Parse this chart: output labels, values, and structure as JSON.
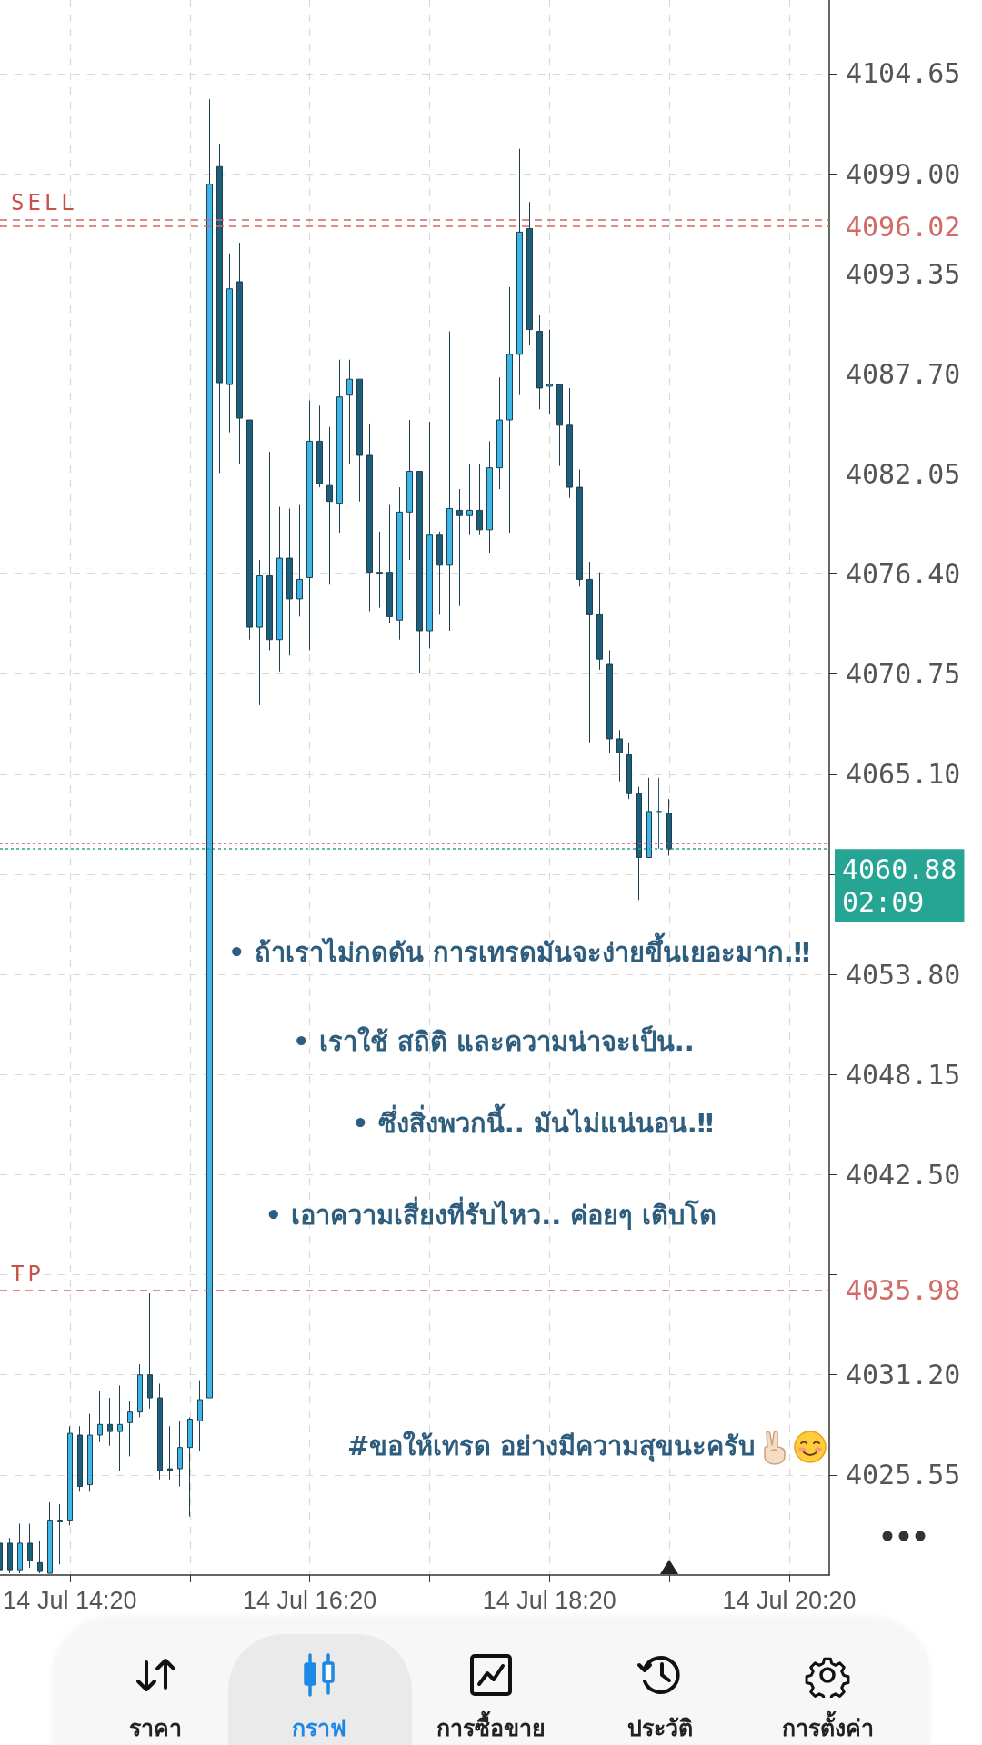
{
  "chart_data": {
    "type": "candlestick",
    "x": [
      "--07-14T13:45",
      "--07-14T13:50",
      "--07-14T13:55",
      "--07-14T14:00",
      "--07-14T14:05",
      "--07-14T14:10",
      "--07-14T14:15",
      "--07-14T14:20",
      "--07-14T14:25",
      "--07-14T14:30",
      "--07-14T14:35",
      "--07-14T14:40",
      "--07-14T14:45",
      "--07-14T14:50",
      "--07-14T14:55",
      "--07-14T15:00",
      "--07-14T15:05",
      "--07-14T15:10",
      "--07-14T15:15",
      "--07-14T15:20",
      "--07-14T15:25",
      "--07-14T15:30",
      "--07-14T15:35",
      "--07-14T15:40",
      "--07-14T15:45",
      "--07-14T15:50",
      "--07-14T15:55",
      "--07-14T16:00",
      "--07-14T16:05",
      "--07-14T16:10",
      "--07-14T16:15",
      "--07-14T16:20",
      "--07-14T16:25",
      "--07-14T16:30",
      "--07-14T16:35",
      "--07-14T16:40",
      "--07-14T16:45",
      "--07-14T16:50",
      "--07-14T16:55",
      "--07-14T17:00",
      "--07-14T17:05",
      "--07-14T17:10",
      "--07-14T17:15",
      "--07-14T17:20",
      "--07-14T17:25",
      "--07-14T17:30",
      "--07-14T17:35",
      "--07-14T17:40",
      "--07-14T17:45",
      "--07-14T17:50",
      "--07-14T17:55",
      "--07-14T18:00",
      "--07-14T18:05",
      "--07-14T18:10",
      "--07-14T18:15",
      "--07-14T18:20",
      "--07-14T18:25",
      "--07-14T18:30",
      "--07-14T18:35",
      "--07-14T18:40",
      "--07-14T18:45",
      "--07-14T18:50",
      "--07-14T18:55",
      "--07-14T19:00",
      "--07-14T19:05",
      "--07-14T19:10",
      "--07-14T19:15",
      "--07-14T19:20"
    ],
    "ohlc": [
      [
        4021.7,
        4021.8,
        4020.0,
        4020.2
      ],
      [
        4021.7,
        4022.0,
        4020.0,
        4020.2
      ],
      [
        4020.2,
        4022.8,
        4020.0,
        4021.7
      ],
      [
        4021.7,
        4022.8,
        4020.3,
        4020.7
      ],
      [
        4020.6,
        4021.8,
        4020.0,
        4020.1
      ],
      [
        4020.0,
        4024.0,
        4020.0,
        4023.0
      ],
      [
        4022.9,
        4023.9,
        4020.5,
        4023.0
      ],
      [
        4023.0,
        4028.3,
        4022.7,
        4027.9
      ],
      [
        4027.8,
        4028.3,
        4024.6,
        4024.9
      ],
      [
        4025.0,
        4029.0,
        4024.6,
        4027.8
      ],
      [
        4027.8,
        4030.3,
        4027.4,
        4028.4
      ],
      [
        4028.4,
        4029.9,
        4027.2,
        4028.0
      ],
      [
        4028.0,
        4030.6,
        4025.8,
        4028.4
      ],
      [
        4028.5,
        4029.7,
        4026.6,
        4029.1
      ],
      [
        4029.1,
        4031.8,
        4028.8,
        4031.2
      ],
      [
        4031.2,
        4035.8,
        4029.3,
        4029.9
      ],
      [
        4029.9,
        4030.7,
        4025.3,
        4025.8
      ],
      [
        4025.9,
        4028.3,
        4025.3,
        4025.8
      ],
      [
        4025.9,
        4028.6,
        4024.9,
        4027.1
      ],
      [
        4027.1,
        4028.8,
        4023.2,
        4028.7
      ],
      [
        4028.6,
        4030.9,
        4026.9,
        4029.8
      ],
      [
        4029.9,
        4103.2,
        4029.9,
        4098.4
      ],
      [
        4099.4,
        4100.7,
        4082.1,
        4087.2
      ],
      [
        4087.1,
        4094.5,
        4084.4,
        4092.5
      ],
      [
        4092.9,
        4095.1,
        4082.6,
        4085.2
      ],
      [
        4085.1,
        4085.1,
        4072.7,
        4073.4
      ],
      [
        4073.4,
        4077.2,
        4069.0,
        4076.3
      ],
      [
        4076.3,
        4083.3,
        4072.1,
        4072.7
      ],
      [
        4072.7,
        4080.2,
        4070.9,
        4077.3
      ],
      [
        4077.3,
        4080.1,
        4071.8,
        4075.0
      ],
      [
        4075.0,
        4080.3,
        4074.0,
        4076.1
      ],
      [
        4076.2,
        4086.2,
        4072.1,
        4083.9
      ],
      [
        4083.9,
        4085.9,
        4081.3,
        4081.5
      ],
      [
        4081.4,
        4084.7,
        4075.8,
        4080.5
      ],
      [
        4080.4,
        4088.5,
        4078.7,
        4086.4
      ],
      [
        4086.5,
        4088.5,
        4082.6,
        4087.4
      ],
      [
        4087.4,
        4087.4,
        4080.5,
        4083.1
      ],
      [
        4083.1,
        4084.9,
        4074.3,
        4076.5
      ],
      [
        4076.5,
        4078.8,
        4074.5,
        4076.4
      ],
      [
        4076.5,
        4080.3,
        4073.6,
        4074.0
      ],
      [
        4073.8,
        4081.3,
        4072.7,
        4079.9
      ],
      [
        4079.9,
        4085.1,
        4077.2,
        4082.2
      ],
      [
        4082.2,
        4082.2,
        4070.8,
        4073.2
      ],
      [
        4073.2,
        4085.0,
        4072.2,
        4078.6
      ],
      [
        4078.6,
        4078.8,
        4074.1,
        4076.9
      ],
      [
        4076.9,
        4090.1,
        4073.2,
        4080.1
      ],
      [
        4080.0,
        4081.2,
        4074.6,
        4079.7
      ],
      [
        4079.7,
        4082.6,
        4078.6,
        4080.0
      ],
      [
        4080.0,
        4082.6,
        4078.6,
        4078.9
      ],
      [
        4078.9,
        4083.9,
        4077.6,
        4082.4
      ],
      [
        4082.4,
        4087.5,
        4081.2,
        4085.1
      ],
      [
        4085.1,
        4092.6,
        4078.7,
        4088.8
      ],
      [
        4088.8,
        4100.4,
        4086.5,
        4095.7
      ],
      [
        4095.9,
        4097.4,
        4089.3,
        4090.2
      ],
      [
        4090.1,
        4091.0,
        4085.7,
        4086.9
      ],
      [
        4087.0,
        4090.2,
        4085.4,
        4087.1
      ],
      [
        4087.1,
        4087.1,
        4082.5,
        4084.8
      ],
      [
        4084.8,
        4086.9,
        4080.7,
        4081.3
      ],
      [
        4081.3,
        4082.3,
        4075.7,
        4076.1
      ],
      [
        4076.1,
        4077.1,
        4066.9,
        4074.1
      ],
      [
        4074.1,
        4076.5,
        4071.0,
        4071.6
      ],
      [
        4071.3,
        4072.1,
        4066.3,
        4067.1
      ],
      [
        4067.1,
        4067.6,
        4064.7,
        4066.3
      ],
      [
        4066.2,
        4066.9,
        4063.7,
        4064.0
      ],
      [
        4064.0,
        4064.4,
        4058.0,
        4060.4
      ],
      [
        4060.4,
        4064.9,
        4060.4,
        4063.0
      ],
      [
        4063.0,
        4064.9,
        4060.9,
        4063.0
      ],
      [
        4062.9,
        4063.7,
        4060.5,
        4060.88
      ]
    ],
    "colors": [
      "#1d5e7a",
      "#1d5e7a",
      "#3db5e6",
      "#1d5e7a",
      "#1d5e7a",
      "#3db5e6",
      "#1d5e7a",
      "#3db5e6",
      "#1d5e7a",
      "#3db5e6",
      "#3db5e6",
      "#1d5e7a",
      "#3db5e6",
      "#3db5e6",
      "#3db5e6",
      "#1d5e7a",
      "#1d5e7a",
      "#1d5e7a",
      "#3db5e6",
      "#3db5e6",
      "#3db5e6",
      "#3db5e6",
      "#1d5e7a",
      "#3db5e6",
      "#1d5e7a",
      "#1d5e7a",
      "#3db5e6",
      "#1d5e7a",
      "#3db5e6",
      "#1d5e7a",
      "#3db5e6",
      "#3db5e6",
      "#1d5e7a",
      "#1d5e7a",
      "#3db5e6",
      "#3db5e6",
      "#1d5e7a",
      "#1d5e7a",
      "#1d5e7a",
      "#1d5e7a",
      "#3db5e6",
      "#3db5e6",
      "#1d5e7a",
      "#3db5e6",
      "#1d5e7a",
      "#3db5e6",
      "#1d5e7a",
      "#3db5e6",
      "#1d5e7a",
      "#3db5e6",
      "#3db5e6",
      "#3db5e6",
      "#3db5e6",
      "#1d5e7a",
      "#1d5e7a",
      "#3db5e6",
      "#1d5e7a",
      "#1d5e7a",
      "#1d5e7a",
      "#1d5e7a",
      "#1d5e7a",
      "#1d5e7a",
      "#1d5e7a",
      "#1d5e7a",
      "#1d5e7a",
      "#3db5e6",
      "#1d5e7a",
      "#1d5e7a"
    ],
    "xlim": [
      "--07-14T13:45",
      "--07-14T20:40"
    ],
    "xticks": [
      {
        "value": "--07-14T14:20",
        "label": "14 Jul 14:20"
      },
      {
        "value": "--07-14T15:20",
        "label": null
      },
      {
        "value": "--07-14T16:20",
        "label": "14 Jul 16:20"
      },
      {
        "value": "--07-14T17:20",
        "label": null
      },
      {
        "value": "--07-14T18:20",
        "label": "14 Jul 18:20"
      },
      {
        "value": "--07-14T19:20",
        "label": null
      },
      {
        "value": "--07-14T20:20",
        "label": "14 Jul 20:20"
      }
    ],
    "ylim": [
      4019.9,
      4108.8
    ],
    "yticks": [
      {
        "value": 4025.55,
        "label": "4025.55"
      },
      {
        "value": 4031.2,
        "label": "4031.20"
      },
      {
        "value": 4036.85,
        "label": null
      },
      {
        "value": 4042.5,
        "label": "4042.50"
      },
      {
        "value": 4048.15,
        "label": "4048.15"
      },
      {
        "value": 4053.8,
        "label": "4053.80"
      },
      {
        "value": 4059.45,
        "label": null
      },
      {
        "value": 4065.1,
        "label": "4065.10"
      },
      {
        "value": 4070.75,
        "label": "4070.75"
      },
      {
        "value": 4076.4,
        "label": "4076.40"
      },
      {
        "value": 4082.05,
        "label": "4082.05"
      },
      {
        "value": 4087.7,
        "label": "4087.70"
      },
      {
        "value": 4093.35,
        "label": "4093.35"
      },
      {
        "value": 4099,
        "label": "4099.00"
      },
      {
        "value": 4104.65,
        "label": "4104.65"
      }
    ],
    "grid": true,
    "ref_lines": [
      {
        "axis": "y",
        "value": 4096.42,
        "label": null,
        "color": "#d26a66",
        "line_style": "dashed"
      },
      {
        "axis": "y",
        "value": 4096.02,
        "label": "4096.02",
        "color": "#d26a66",
        "line_style": "dashed"
      },
      {
        "axis": "y",
        "value": 4061.2,
        "label": null,
        "color": "#e05a55",
        "line_style": "dotted"
      },
      {
        "axis": "y",
        "value": 4060.88,
        "label": "4060.88\n02:09",
        "color": "#27a594",
        "line_style": "dotted"
      },
      {
        "axis": "y",
        "value": 4035.98,
        "label": "4035.98",
        "color": "#d26a66",
        "line_style": "dashed"
      }
    ],
    "annotations": [
      "• ถ้าเราไม่กดดัน การเทรดมันจะง่ายขึ้นเยอะมาก.‼",
      "• เราใช้ สถิติ และความน่าจะเป็น..",
      "• ซึ่งสิ่งพวกนี้.. มันไม่แน่นอน.‼",
      "• เอาความเสี่ยงที่รับไหว.. ค่อยๆ เติบโต",
      "#ขอให้เทรด อย่างมีความสุขนะครับ",
      "ราคา",
      "กราฟ",
      "การซื้อขาย",
      "ประวัติ",
      "การตั้งค่า",
      {
        "text": "SELL",
        "y": 4096.42
      },
      {
        "text": "TP",
        "y": 4035.98
      }
    ]
  }
}
